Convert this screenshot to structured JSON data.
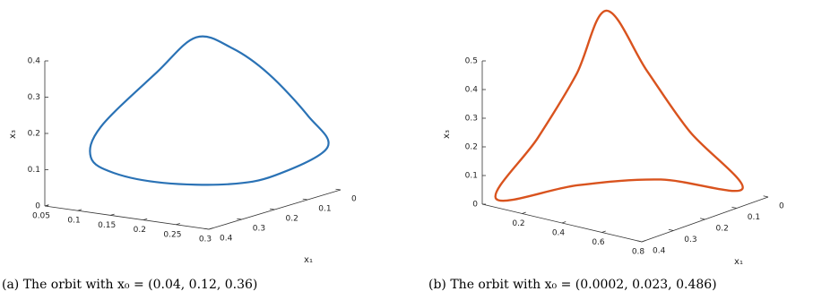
{
  "chart_data": [
    {
      "type": "line3d",
      "caption": "(a) The orbit with x₀ = (0.04, 0.12, 0.36)",
      "x1label": "x₁",
      "x3label": "x₃",
      "x1lim": [
        0,
        0.4
      ],
      "x1ticks": [
        0,
        0.1,
        0.2,
        0.3,
        0.4
      ],
      "x2lim": [
        0.05,
        0.3
      ],
      "x2ticks": [
        0.05,
        0.1,
        0.15,
        0.2,
        0.25,
        0.3
      ],
      "x3lim": [
        0,
        0.4
      ],
      "x3ticks": [
        0,
        0.1,
        0.2,
        0.3,
        0.4
      ],
      "series": [
        {
          "color": "#2a72b5",
          "x1": [
            0.04,
            0.12,
            0.25,
            0.32,
            0.33,
            0.3,
            0.22,
            0.14,
            0.02,
            0.02,
            0.02,
            0.03
          ],
          "x2": [
            0.1,
            0.08,
            0.06,
            0.08,
            0.12,
            0.18,
            0.24,
            0.27,
            0.29,
            0.26,
            0.2,
            0.15
          ],
          "x3": [
            0.38,
            0.3,
            0.18,
            0.12,
            0.09,
            0.07,
            0.06,
            0.07,
            0.12,
            0.2,
            0.3,
            0.36
          ]
        }
      ]
    },
    {
      "type": "line3d",
      "caption": "(b) The orbit with x₀ = (0.0002, 0.023, 0.486)",
      "x1label": "x₁",
      "x3label": "x₃",
      "x1lim": [
        0,
        0.4
      ],
      "x1ticks": [
        0,
        0.1,
        0.2,
        0.3,
        0.4
      ],
      "x2lim": [
        0,
        0.8
      ],
      "x2ticks": [
        0.2,
        0.4,
        0.6,
        0.8
      ],
      "x3lim": [
        0,
        0.5
      ],
      "x3ticks": [
        0,
        0.1,
        0.2,
        0.3,
        0.4,
        0.5
      ],
      "series": [
        {
          "color": "#d9531e",
          "x1": [
            0.02,
            0.145,
            0.275,
            0.4,
            0.285,
            0.165,
            0.05,
            0.04,
            0.03
          ],
          "x2": [
            0.02,
            0.067,
            0.08,
            0.07,
            0.297,
            0.523,
            0.75,
            0.47,
            0.24
          ],
          "x3": [
            0.53,
            0.363,
            0.195,
            0.03,
            0.07,
            0.08,
            0.04,
            0.19,
            0.36
          ]
        }
      ]
    }
  ]
}
